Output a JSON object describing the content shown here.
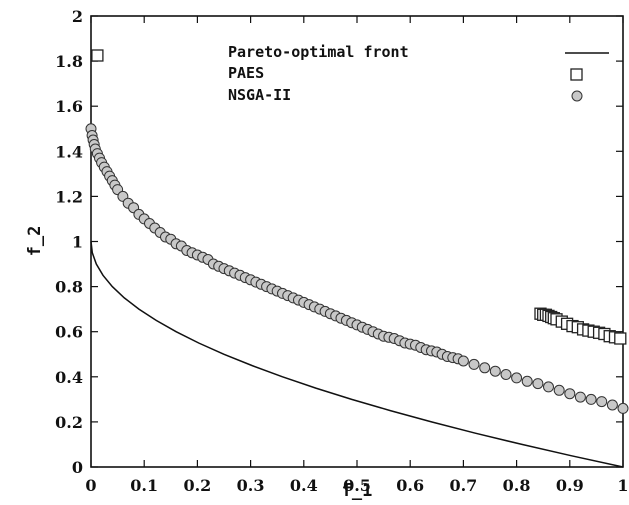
{
  "chart_data": {
    "type": "scatter",
    "xlabel": "f_1",
    "ylabel": "f_2",
    "xlim": [
      0,
      1
    ],
    "ylim": [
      0,
      2
    ],
    "xticks": [
      "0",
      "0.1",
      "0.2",
      "0.3",
      "0.4",
      "0.5",
      "0.6",
      "0.7",
      "0.8",
      "0.9",
      "1"
    ],
    "yticks": [
      "0",
      "0.2",
      "0.4",
      "0.6",
      "0.8",
      "1",
      "1.2",
      "1.4",
      "1.6",
      "1.8",
      "2"
    ],
    "legend_position": "top-right",
    "grid": false,
    "series": [
      {
        "name": "Pareto-optimal front",
        "kind": "line",
        "color": "#111111",
        "x": [
          0.0,
          0.0025,
          0.01,
          0.0225,
          0.04,
          0.0625,
          0.09,
          0.1225,
          0.16,
          0.2025,
          0.25,
          0.3025,
          0.36,
          0.4225,
          0.49,
          0.5625,
          0.64,
          0.7225,
          0.81,
          0.9025,
          1.0
        ],
        "y": [
          1.0,
          0.95,
          0.9,
          0.85,
          0.8,
          0.75,
          0.7,
          0.65,
          0.6,
          0.55,
          0.5,
          0.45,
          0.4,
          0.35,
          0.3,
          0.25,
          0.2,
          0.15,
          0.1,
          0.05,
          0.0
        ]
      },
      {
        "name": "PAES",
        "kind": "square",
        "color": "#ffffff",
        "x": [
          0.012,
          0.845,
          0.85,
          0.855,
          0.86,
          0.865,
          0.87,
          0.875,
          0.885,
          0.895,
          0.905,
          0.915,
          0.925,
          0.935,
          0.945,
          0.955,
          0.965,
          0.975,
          0.985,
          0.995
        ],
        "y": [
          1.825,
          0.68,
          0.675,
          0.675,
          0.67,
          0.665,
          0.66,
          0.655,
          0.645,
          0.635,
          0.625,
          0.62,
          0.61,
          0.605,
          0.6,
          0.595,
          0.59,
          0.58,
          0.575,
          0.57
        ]
      },
      {
        "name": "NSGA-II",
        "kind": "circle",
        "color": "#c8c8c8",
        "x": [
          0.0,
          0.002,
          0.004,
          0.006,
          0.008,
          0.012,
          0.016,
          0.02,
          0.025,
          0.03,
          0.035,
          0.04,
          0.045,
          0.05,
          0.06,
          0.07,
          0.08,
          0.09,
          0.1,
          0.11,
          0.12,
          0.13,
          0.14,
          0.15,
          0.16,
          0.17,
          0.18,
          0.19,
          0.2,
          0.21,
          0.22,
          0.23,
          0.24,
          0.25,
          0.26,
          0.27,
          0.28,
          0.29,
          0.3,
          0.31,
          0.32,
          0.33,
          0.34,
          0.35,
          0.36,
          0.37,
          0.38,
          0.39,
          0.4,
          0.41,
          0.42,
          0.43,
          0.44,
          0.45,
          0.46,
          0.47,
          0.48,
          0.49,
          0.5,
          0.51,
          0.52,
          0.53,
          0.54,
          0.55,
          0.56,
          0.57,
          0.58,
          0.59,
          0.6,
          0.61,
          0.62,
          0.63,
          0.64,
          0.65,
          0.66,
          0.67,
          0.68,
          0.69,
          0.7,
          0.72,
          0.74,
          0.76,
          0.78,
          0.8,
          0.82,
          0.84,
          0.86,
          0.88,
          0.9,
          0.92,
          0.94,
          0.96,
          0.98,
          1.0
        ],
        "y": [
          1.5,
          1.47,
          1.45,
          1.43,
          1.41,
          1.39,
          1.37,
          1.35,
          1.33,
          1.31,
          1.29,
          1.27,
          1.25,
          1.23,
          1.2,
          1.17,
          1.15,
          1.12,
          1.1,
          1.08,
          1.06,
          1.04,
          1.02,
          1.01,
          0.99,
          0.98,
          0.96,
          0.95,
          0.94,
          0.93,
          0.92,
          0.9,
          0.89,
          0.88,
          0.87,
          0.86,
          0.85,
          0.84,
          0.83,
          0.82,
          0.81,
          0.8,
          0.79,
          0.78,
          0.77,
          0.76,
          0.75,
          0.74,
          0.73,
          0.72,
          0.71,
          0.7,
          0.69,
          0.68,
          0.67,
          0.66,
          0.65,
          0.64,
          0.63,
          0.62,
          0.61,
          0.6,
          0.59,
          0.58,
          0.575,
          0.57,
          0.56,
          0.55,
          0.545,
          0.54,
          0.53,
          0.52,
          0.515,
          0.51,
          0.5,
          0.49,
          0.485,
          0.48,
          0.47,
          0.455,
          0.44,
          0.425,
          0.41,
          0.395,
          0.38,
          0.37,
          0.355,
          0.34,
          0.325,
          0.31,
          0.3,
          0.29,
          0.275,
          0.26
        ]
      }
    ]
  }
}
